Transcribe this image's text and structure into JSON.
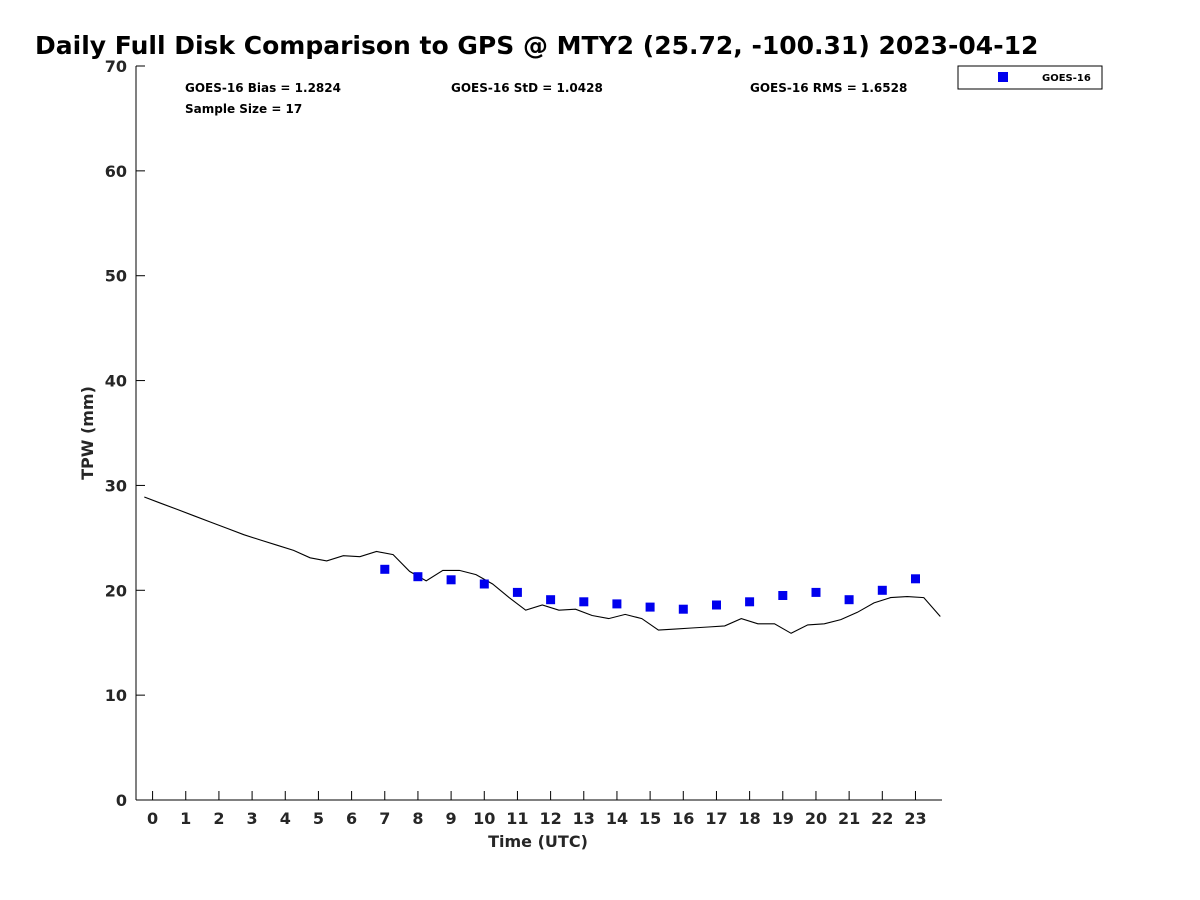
{
  "chart_data": {
    "type": "scatter",
    "title": "Daily Full Disk Comparison to GPS @ MTY2 (25.72, -100.31) 2023-04-12",
    "xlabel": "Time (UTC)",
    "ylabel": "TPW (mm)",
    "xlim": [
      -0.5,
      23.8
    ],
    "ylim": [
      0,
      70
    ],
    "xticks": [
      0,
      1,
      2,
      3,
      4,
      5,
      6,
      7,
      8,
      9,
      10,
      11,
      12,
      13,
      14,
      15,
      16,
      17,
      18,
      19,
      20,
      21,
      22,
      23
    ],
    "yticks": [
      0,
      10,
      20,
      30,
      40,
      50,
      60,
      70
    ],
    "grid": false,
    "legend_position": "top-right",
    "stats": {
      "bias": "GOES-16 Bias = 1.2824",
      "std": "GOES-16 StD = 1.0428",
      "rms": "GOES-16 RMS = 1.6528",
      "sample": "Sample Size = 17"
    },
    "series": [
      {
        "name": "GOES-16",
        "kind": "scatter",
        "color": "#0000ee",
        "x": [
          7,
          8,
          9,
          10,
          11,
          12,
          13,
          14,
          15,
          16,
          17,
          18,
          19,
          20,
          21,
          22,
          23
        ],
        "y": [
          22.0,
          21.3,
          21.0,
          20.6,
          19.8,
          19.1,
          18.9,
          18.7,
          18.4,
          18.2,
          18.6,
          18.9,
          19.5,
          19.8,
          19.1,
          20.0,
          21.1
        ]
      },
      {
        "kind": "line",
        "color": "#000000",
        "x": [
          -0.25,
          0.25,
          0.75,
          1.25,
          1.75,
          2.25,
          2.75,
          3.25,
          3.75,
          4.25,
          4.75,
          5.25,
          5.75,
          6.25,
          6.75,
          7.25,
          7.75,
          8.25,
          8.75,
          9.25,
          9.75,
          10.25,
          10.75,
          11.25,
          11.75,
          12.25,
          12.75,
          13.25,
          13.75,
          14.25,
          14.75,
          15.25,
          15.75,
          16.25,
          16.75,
          17.25,
          17.75,
          18.25,
          18.75,
          19.25,
          19.75,
          20.25,
          20.75,
          21.25,
          21.75,
          22.25,
          22.75,
          23.25,
          23.75
        ],
        "y": [
          28.9,
          28.3,
          27.7,
          27.1,
          26.5,
          25.9,
          25.3,
          24.8,
          24.3,
          23.8,
          23.1,
          22.8,
          23.3,
          23.2,
          23.7,
          23.4,
          21.8,
          20.9,
          21.9,
          21.9,
          21.5,
          20.6,
          19.3,
          18.1,
          18.6,
          18.1,
          18.2,
          17.6,
          17.3,
          17.7,
          17.3,
          16.2,
          16.3,
          16.4,
          16.5,
          16.6,
          17.3,
          16.8,
          16.8,
          15.9,
          16.7,
          16.8,
          17.2,
          17.9,
          18.8,
          19.3,
          19.4,
          19.3,
          17.5
        ]
      }
    ]
  }
}
